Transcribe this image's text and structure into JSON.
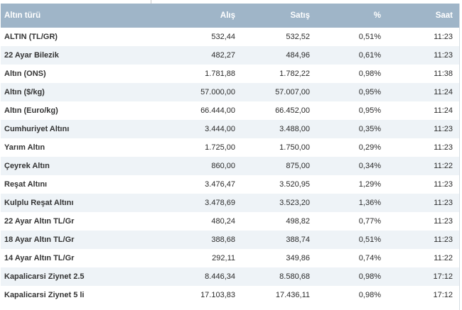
{
  "header": {
    "name": "Altın türü",
    "alis": "Alış",
    "satis": "Satış",
    "pct": "%",
    "saat": "Saat"
  },
  "rows": [
    {
      "name": "ALTIN (TL/GR)",
      "alis": "532,44",
      "satis": "532,52",
      "pct": "0,51%",
      "saat": "11:23"
    },
    {
      "name": "22 Ayar Bilezik",
      "alis": "482,27",
      "satis": "484,96",
      "pct": "0,61%",
      "saat": "11:23"
    },
    {
      "name": "Altın (ONS)",
      "alis": "1.781,88",
      "satis": "1.782,22",
      "pct": "0,98%",
      "saat": "11:38"
    },
    {
      "name": "Altın ($/kg)",
      "alis": "57.000,00",
      "satis": "57.007,00",
      "pct": "0,95%",
      "saat": "11:24"
    },
    {
      "name": "Altın (Euro/kg)",
      "alis": "66.444,00",
      "satis": "66.452,00",
      "pct": "0,95%",
      "saat": "11:24"
    },
    {
      "name": "Cumhuriyet Altını",
      "alis": "3.444,00",
      "satis": "3.488,00",
      "pct": "0,35%",
      "saat": "11:23"
    },
    {
      "name": "Yarım Altın",
      "alis": "1.725,00",
      "satis": "1.750,00",
      "pct": "0,29%",
      "saat": "11:23"
    },
    {
      "name": "Çeyrek Altın",
      "alis": "860,00",
      "satis": "875,00",
      "pct": "0,34%",
      "saat": "11:22"
    },
    {
      "name": "Reşat Altını",
      "alis": "3.476,47",
      "satis": "3.520,95",
      "pct": "1,29%",
      "saat": "11:23"
    },
    {
      "name": "Kulplu Reşat Altını",
      "alis": "3.478,69",
      "satis": "3.523,20",
      "pct": "1,36%",
      "saat": "11:23"
    },
    {
      "name": "22 Ayar Altın TL/Gr",
      "alis": "480,24",
      "satis": "498,82",
      "pct": "0,77%",
      "saat": "11:23"
    },
    {
      "name": "18 Ayar Altın TL/Gr",
      "alis": "388,68",
      "satis": "388,74",
      "pct": "0,51%",
      "saat": "11:23"
    },
    {
      "name": "14 Ayar Altın TL/Gr",
      "alis": "292,11",
      "satis": "349,86",
      "pct": "0,74%",
      "saat": "11:22"
    },
    {
      "name": "Kapalicarsi Ziynet 2.5",
      "alis": "8.446,34",
      "satis": "8.580,68",
      "pct": "0,98%",
      "saat": "17:12"
    },
    {
      "name": "Kapalicarsi Ziynet 5 li",
      "alis": "17.103,83",
      "satis": "17.436,11",
      "pct": "0,98%",
      "saat": "17:12"
    }
  ],
  "colors": {
    "header_bg": "#9fb5c8",
    "header_text": "#ffffff",
    "row_alt_bg": "#eef3f7"
  }
}
